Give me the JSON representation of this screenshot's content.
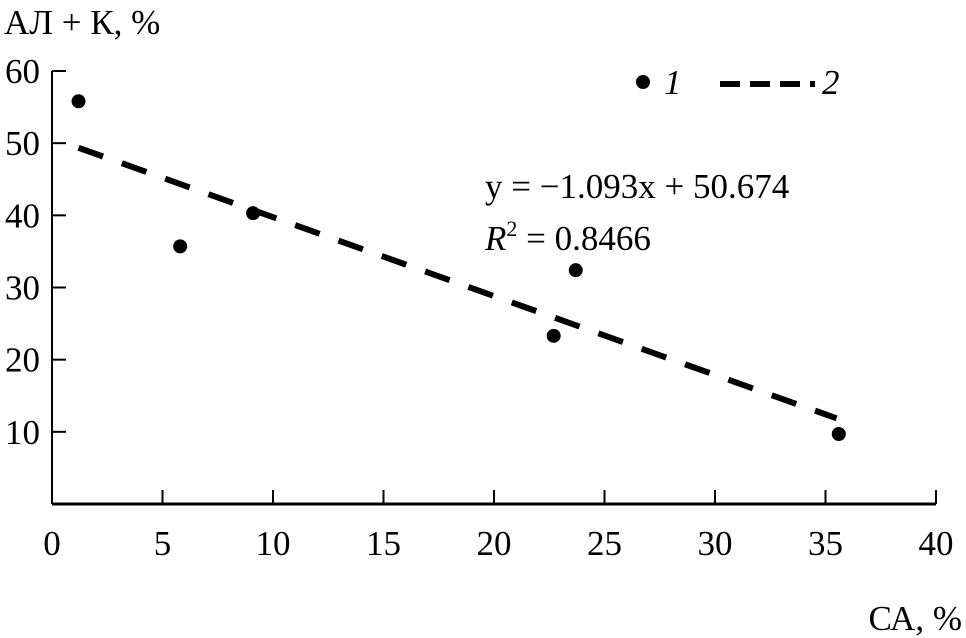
{
  "chart_data": {
    "type": "scatter",
    "xlabel": "СА, %",
    "ylabel": "АЛ + К, %",
    "xlim": [
      0,
      40
    ],
    "ylim": [
      0,
      60
    ],
    "xticks": [
      "0",
      "5",
      "10",
      "15",
      "20",
      "25",
      "30",
      "35",
      "40"
    ],
    "yticks": [
      "10",
      "20",
      "30",
      "40",
      "50",
      "60"
    ],
    "grid": false,
    "legend": {
      "placement": "top-right",
      "entries": [
        {
          "label": "1",
          "marker": "dot"
        },
        {
          "label": "2",
          "marker": "dashed-line"
        }
      ]
    },
    "series": [
      {
        "name": "1",
        "points": [
          {
            "x": 1.2,
            "y": 55.8
          },
          {
            "x": 5.8,
            "y": 35.7
          },
          {
            "x": 9.1,
            "y": 40.3
          },
          {
            "x": 22.7,
            "y": 23.3
          },
          {
            "x": 23.7,
            "y": 32.4
          },
          {
            "x": 35.6,
            "y": 9.7
          }
        ]
      }
    ],
    "trendline": {
      "name": "2",
      "slope": -1.093,
      "intercept": 50.674,
      "x_range": [
        1.2,
        35.5
      ],
      "equation": "y = −1.093x + 50.674",
      "r2_label": "R",
      "r2_sup": "2",
      "r2_value": " = 0.8466"
    },
    "colors": {
      "ink": "#000000"
    }
  }
}
